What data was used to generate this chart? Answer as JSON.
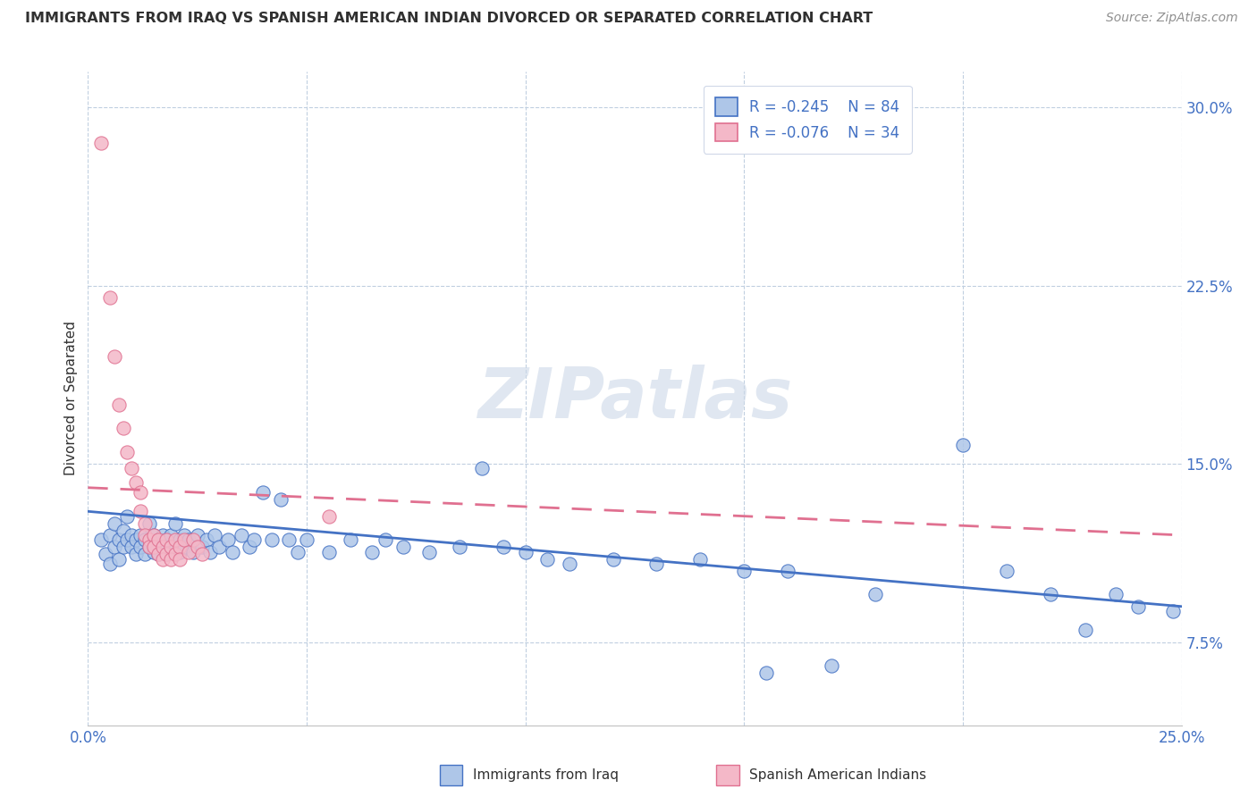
{
  "title": "IMMIGRANTS FROM IRAQ VS SPANISH AMERICAN INDIAN DIVORCED OR SEPARATED CORRELATION CHART",
  "source": "Source: ZipAtlas.com",
  "ylabel": "Divorced or Separated",
  "legend_blue_R": "R = -0.245",
  "legend_blue_N": "N = 84",
  "legend_pink_R": "R = -0.076",
  "legend_pink_N": "N = 34",
  "legend_label_blue": "Immigrants from Iraq",
  "legend_label_pink": "Spanish American Indians",
  "xlim": [
    0.0,
    0.25
  ],
  "ylim": [
    0.04,
    0.315
  ],
  "watermark": "ZIPatlas",
  "blue_scatter": [
    [
      0.003,
      0.118
    ],
    [
      0.004,
      0.112
    ],
    [
      0.005,
      0.12
    ],
    [
      0.005,
      0.108
    ],
    [
      0.006,
      0.115
    ],
    [
      0.006,
      0.125
    ],
    [
      0.007,
      0.118
    ],
    [
      0.007,
      0.11
    ],
    [
      0.008,
      0.122
    ],
    [
      0.008,
      0.115
    ],
    [
      0.009,
      0.118
    ],
    [
      0.009,
      0.128
    ],
    [
      0.01,
      0.12
    ],
    [
      0.01,
      0.115
    ],
    [
      0.011,
      0.118
    ],
    [
      0.011,
      0.112
    ],
    [
      0.012,
      0.12
    ],
    [
      0.012,
      0.115
    ],
    [
      0.013,
      0.118
    ],
    [
      0.013,
      0.112
    ],
    [
      0.014,
      0.125
    ],
    [
      0.014,
      0.115
    ],
    [
      0.015,
      0.12
    ],
    [
      0.015,
      0.113
    ],
    [
      0.016,
      0.118
    ],
    [
      0.016,
      0.112
    ],
    [
      0.017,
      0.12
    ],
    [
      0.017,
      0.115
    ],
    [
      0.018,
      0.118
    ],
    [
      0.018,
      0.112
    ],
    [
      0.019,
      0.12
    ],
    [
      0.019,
      0.115
    ],
    [
      0.02,
      0.125
    ],
    [
      0.02,
      0.115
    ],
    [
      0.021,
      0.118
    ],
    [
      0.021,
      0.113
    ],
    [
      0.022,
      0.12
    ],
    [
      0.022,
      0.115
    ],
    [
      0.023,
      0.118
    ],
    [
      0.024,
      0.113
    ],
    [
      0.025,
      0.12
    ],
    [
      0.026,
      0.115
    ],
    [
      0.027,
      0.118
    ],
    [
      0.028,
      0.113
    ],
    [
      0.029,
      0.12
    ],
    [
      0.03,
      0.115
    ],
    [
      0.032,
      0.118
    ],
    [
      0.033,
      0.113
    ],
    [
      0.035,
      0.12
    ],
    [
      0.037,
      0.115
    ],
    [
      0.038,
      0.118
    ],
    [
      0.04,
      0.138
    ],
    [
      0.042,
      0.118
    ],
    [
      0.044,
      0.135
    ],
    [
      0.046,
      0.118
    ],
    [
      0.048,
      0.113
    ],
    [
      0.05,
      0.118
    ],
    [
      0.055,
      0.113
    ],
    [
      0.06,
      0.118
    ],
    [
      0.065,
      0.113
    ],
    [
      0.068,
      0.118
    ],
    [
      0.072,
      0.115
    ],
    [
      0.078,
      0.113
    ],
    [
      0.085,
      0.115
    ],
    [
      0.09,
      0.148
    ],
    [
      0.095,
      0.115
    ],
    [
      0.1,
      0.113
    ],
    [
      0.105,
      0.11
    ],
    [
      0.11,
      0.108
    ],
    [
      0.12,
      0.11
    ],
    [
      0.13,
      0.108
    ],
    [
      0.14,
      0.11
    ],
    [
      0.15,
      0.105
    ],
    [
      0.155,
      0.062
    ],
    [
      0.16,
      0.105
    ],
    [
      0.17,
      0.065
    ],
    [
      0.18,
      0.095
    ],
    [
      0.2,
      0.158
    ],
    [
      0.21,
      0.105
    ],
    [
      0.22,
      0.095
    ],
    [
      0.228,
      0.08
    ],
    [
      0.235,
      0.095
    ],
    [
      0.24,
      0.09
    ],
    [
      0.248,
      0.088
    ]
  ],
  "pink_scatter": [
    [
      0.003,
      0.285
    ],
    [
      0.005,
      0.22
    ],
    [
      0.006,
      0.195
    ],
    [
      0.007,
      0.175
    ],
    [
      0.008,
      0.165
    ],
    [
      0.009,
      0.155
    ],
    [
      0.01,
      0.148
    ],
    [
      0.011,
      0.142
    ],
    [
      0.012,
      0.138
    ],
    [
      0.012,
      0.13
    ],
    [
      0.013,
      0.125
    ],
    [
      0.013,
      0.12
    ],
    [
      0.014,
      0.118
    ],
    [
      0.014,
      0.115
    ],
    [
      0.015,
      0.12
    ],
    [
      0.015,
      0.115
    ],
    [
      0.016,
      0.118
    ],
    [
      0.016,
      0.112
    ],
    [
      0.017,
      0.115
    ],
    [
      0.017,
      0.11
    ],
    [
      0.018,
      0.118
    ],
    [
      0.018,
      0.112
    ],
    [
      0.019,
      0.115
    ],
    [
      0.019,
      0.11
    ],
    [
      0.02,
      0.118
    ],
    [
      0.02,
      0.112
    ],
    [
      0.021,
      0.115
    ],
    [
      0.021,
      0.11
    ],
    [
      0.022,
      0.118
    ],
    [
      0.023,
      0.113
    ],
    [
      0.024,
      0.118
    ],
    [
      0.025,
      0.115
    ],
    [
      0.026,
      0.112
    ],
    [
      0.055,
      0.128
    ]
  ],
  "blue_line_x": [
    0.0,
    0.25
  ],
  "blue_line_y": [
    0.13,
    0.09
  ],
  "pink_line_x": [
    0.0,
    0.25
  ],
  "pink_line_y": [
    0.14,
    0.12
  ],
  "scatter_blue_color": "#aec6e8",
  "scatter_pink_color": "#f4b8c8",
  "line_blue_color": "#4472c4",
  "line_pink_color": "#e07090",
  "grid_color": "#c0cfe0",
  "background_color": "#ffffff",
  "title_color": "#303030",
  "source_color": "#909090",
  "axis_label_color": "#4472c4",
  "watermark_color": "#ccd8e8",
  "ytick_vals": [
    0.075,
    0.15,
    0.225,
    0.3
  ],
  "ytick_labs": [
    "7.5%",
    "15.0%",
    "22.5%",
    "30.0%"
  ],
  "xtick_vals": [
    0.0,
    0.05,
    0.1,
    0.15,
    0.2,
    0.25
  ],
  "xtick_labs": [
    "0.0%",
    "",
    "",
    "",
    "",
    "25.0%"
  ]
}
